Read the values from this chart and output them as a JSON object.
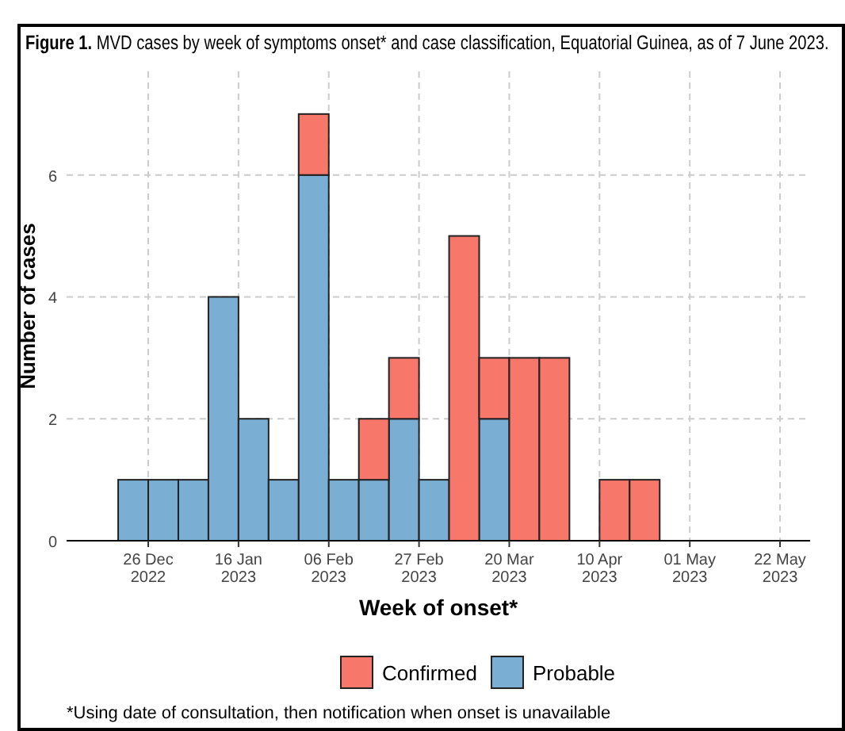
{
  "chart_data": {
    "type": "bar",
    "title": "Figure 1. MVD cases by week of symptoms onset* and case classification, Equatorial Guinea, as of 7 June 2023.",
    "xlabel": "Week of onset*",
    "ylabel": "Number of cases",
    "x": [
      "2022-12-22T12:00",
      "2022-12-29T12:00",
      "2023-01-05T12:00",
      "2023-01-12T12:00",
      "2023-01-19T12:00",
      "2023-01-26T12:00",
      "2023-02-02T12:00",
      "2023-02-09T12:00",
      "2023-02-16T12:00",
      "2023-02-23T12:00",
      "2023-03-02T12:00",
      "2023-03-09T12:00",
      "2023-03-16T12:00",
      "2023-03-23T12:00",
      "2023-03-30T12:00",
      "2023-04-06T12:00",
      "2023-04-13T12:00",
      "2023-04-20T12:00"
    ],
    "series": [
      {
        "name": "Probable",
        "color": "#7aaed3",
        "values": [
          1,
          1,
          1,
          4,
          2,
          1,
          6,
          1,
          1,
          2,
          1,
          0,
          2,
          0,
          0,
          0,
          0,
          0
        ]
      },
      {
        "name": "Confirmed",
        "color": "#f8776b",
        "values": [
          0,
          0,
          0,
          0,
          0,
          0,
          1,
          0,
          1,
          1,
          0,
          5,
          1,
          3,
          3,
          0,
          1,
          1
        ]
      }
    ],
    "stacked": true,
    "xlim": [
      "2022-12-07",
      "2023-05-29"
    ],
    "xticks": [
      {
        "value": "2022-12-26",
        "label": "26 Dec 2022"
      },
      {
        "value": "2023-01-16",
        "label": "16 Jan 2023"
      },
      {
        "value": "2023-02-06",
        "label": "06 Feb 2023"
      },
      {
        "value": "2023-02-27",
        "label": "27 Feb 2023"
      },
      {
        "value": "2023-03-20",
        "label": "20 Mar 2023"
      },
      {
        "value": "2023-04-10",
        "label": "10 Apr 2023"
      },
      {
        "value": "2023-05-01",
        "label": "01 May 2023"
      },
      {
        "value": "2023-05-22",
        "label": "22 May 2023"
      }
    ],
    "ylim": [
      0,
      7.7
    ],
    "yticks": [
      0,
      2,
      4,
      6
    ],
    "grid": true,
    "legend": "bottom",
    "annotations": [
      "*Using date of consultation, then notification when onset is unavailable"
    ]
  }
}
